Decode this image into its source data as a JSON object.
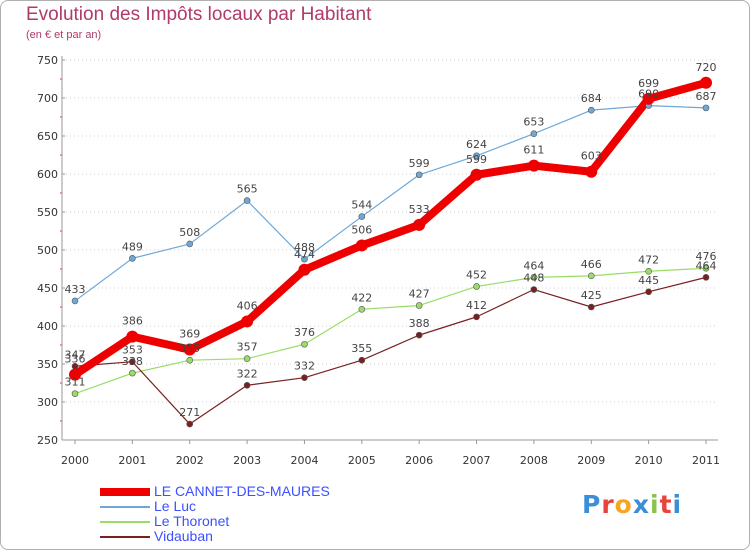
{
  "chart_data": {
    "type": "line",
    "title": "Evolution des Impôts locaux par Habitant",
    "subtitle": "(en € et par an)",
    "xlabel": "",
    "ylabel": "",
    "x": [
      "2000",
      "2001",
      "2002",
      "2003",
      "2004",
      "2005",
      "2006",
      "2007",
      "2008",
      "2009",
      "2010",
      "2011"
    ],
    "ylim": [
      250,
      750
    ],
    "yticks": [
      250,
      300,
      350,
      400,
      450,
      500,
      550,
      600,
      650,
      700,
      750
    ],
    "grid": "horizontal-dotted",
    "legend": "bottom-left",
    "series": [
      {
        "name": "LE CANNET-DES-MAURES",
        "color": "#ee0000",
        "width": 8,
        "values": [
          336,
          386,
          369,
          406,
          474,
          506,
          533,
          599,
          611,
          603,
          699,
          720
        ]
      },
      {
        "name": "Le Luc",
        "color": "#6fa8d6",
        "width": 1.2,
        "values": [
          433,
          489,
          508,
          565,
          488,
          544,
          599,
          624,
          653,
          684,
          690,
          687
        ]
      },
      {
        "name": "Le Thoronet",
        "color": "#99dd66",
        "width": 1.2,
        "values": [
          311,
          338,
          355,
          357,
          376,
          422,
          427,
          452,
          464,
          466,
          472,
          476
        ]
      },
      {
        "name": "Vidauban",
        "color": "#7a2020",
        "width": 1.2,
        "values": [
          347,
          353,
          271,
          322,
          332,
          355,
          388,
          412,
          448,
          425,
          445,
          464
        ]
      }
    ]
  },
  "logo": {
    "text": "Proxiti",
    "letter_colors": [
      "#3a8fd8",
      "#e8443a",
      "#f5a623",
      "#3a8fd8",
      "#8bc34a",
      "#e8443a",
      "#3a8fd8"
    ]
  }
}
